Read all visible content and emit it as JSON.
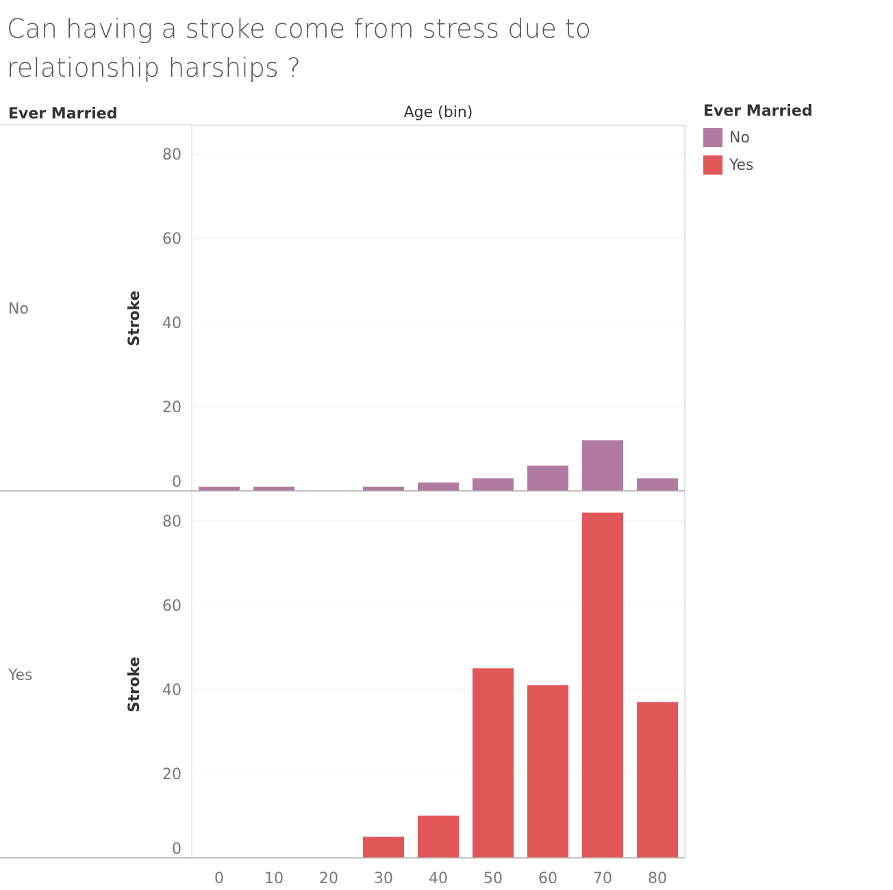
{
  "title": "Can having a stroke come from stress due to relationship harships ?",
  "row_header": "Ever Married",
  "column_header": "Age (bin)",
  "legend": {
    "title": "Ever Married",
    "items": [
      {
        "label": "No",
        "color": "#B07AA1"
      },
      {
        "label": "Yes",
        "color": "#E15759"
      }
    ]
  },
  "chart_data": {
    "type": "bar",
    "title": "Can having a stroke come from stress due to relationship harships ?",
    "xlabel": "Age (bin)",
    "ylabel": "Stroke",
    "categories": [
      "0",
      "10",
      "20",
      "30",
      "40",
      "50",
      "60",
      "70",
      "80"
    ],
    "y_ticks": [
      0,
      20,
      40,
      60,
      80
    ],
    "ylim": [
      0,
      87
    ],
    "grid": true,
    "legend_position": "top-right",
    "panels": [
      {
        "label": "No",
        "color": "#B07AA1",
        "values": [
          1,
          1,
          0,
          1,
          2,
          3,
          6,
          12,
          3
        ]
      },
      {
        "label": "Yes",
        "color": "#E15759",
        "values": [
          0,
          0,
          0,
          5,
          10,
          45,
          41,
          82,
          37
        ]
      }
    ]
  }
}
